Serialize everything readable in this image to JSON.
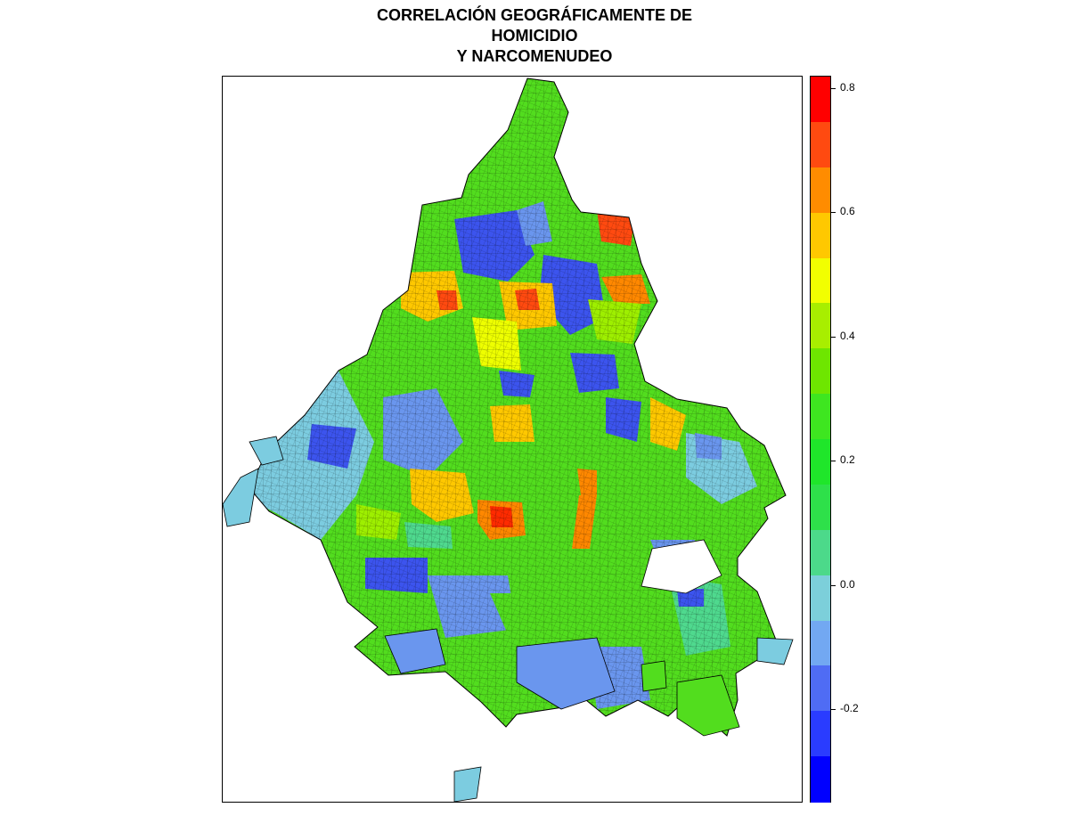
{
  "title": {
    "line1": "CORRELACIÓN GEOGRÁFICAMENTE DE",
    "line2": "HOMICIDIO",
    "line3": "Y NARCOMENUDEO"
  },
  "legend": {
    "min": -0.35,
    "max": 0.82,
    "ticks": [
      "0.8",
      "0.6",
      "0.4",
      "0.2",
      "0.0",
      "-0.2"
    ],
    "tick_values": [
      0.8,
      0.6,
      0.4,
      0.2,
      0.0,
      -0.2
    ],
    "colors_top_to_bottom": [
      "#ff0000",
      "#ff4a10",
      "#ff8c00",
      "#ffc800",
      "#f2ff00",
      "#a8ee00",
      "#6ee600",
      "#3ee620",
      "#1fe62a",
      "#2ee04a",
      "#4cd98a",
      "#7ccfda",
      "#72a8f2",
      "#4f6cf4",
      "#2a3cff",
      "#0000ff"
    ]
  },
  "map_colors": {
    "red": "#ff2b00",
    "orange": "#ff8800",
    "gold": "#ffc800",
    "yellow": "#eeff00",
    "lime": "#9eef00",
    "green": "#5ee010",
    "bright_green": "#2ee62a",
    "seafoam": "#4fd98e",
    "sky": "#7ccce0",
    "cornflower": "#6a96ee",
    "blue": "#3c54ee",
    "deep_blue": "#1e30f0"
  }
}
